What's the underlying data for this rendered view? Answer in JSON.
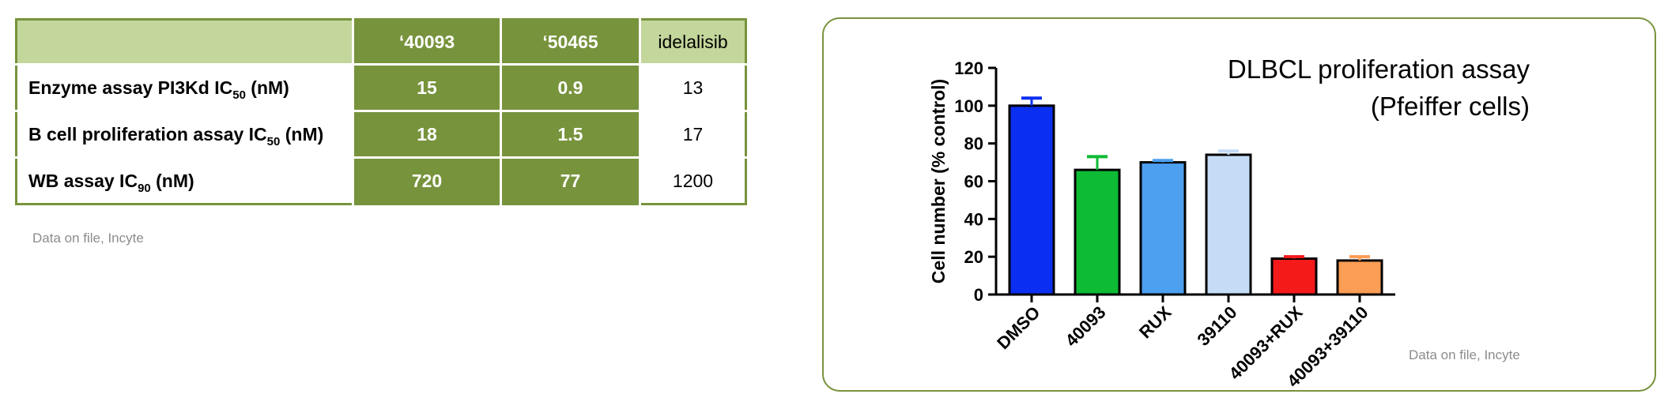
{
  "table": {
    "columns": [
      "‘40093",
      "‘50465",
      "idelalisib"
    ],
    "rows": [
      {
        "label": "Enzyme assay PI3Kd IC",
        "sub": "50",
        "suffix": " (nM)",
        "values": [
          "15",
          "0.9",
          "13"
        ]
      },
      {
        "label": "B cell proliferation assay IC",
        "sub": "50",
        "suffix": " (nM)",
        "values": [
          "18",
          "1.5",
          "17"
        ]
      },
      {
        "label": "WB assay IC",
        "sub": "90",
        "suffix": " (nM)",
        "values": [
          "720",
          "77",
          "1200"
        ]
      }
    ],
    "source": "Data on file, Incyte"
  },
  "chart_data": {
    "type": "bar",
    "title": [
      "DLBCL proliferation assay",
      "(Pfeiffer cells)"
    ],
    "categories": [
      "DMSO",
      "40093",
      "RUX",
      "39110",
      "40093+RUX",
      "40093+39110"
    ],
    "values": [
      100,
      66,
      70,
      74,
      19,
      18
    ],
    "errors": [
      4,
      7,
      1,
      2,
      1,
      2
    ],
    "colors": [
      "#0a2ff0",
      "#0dbb35",
      "#4d9fef",
      "#c5dcf6",
      "#f51a1a",
      "#fb9d55"
    ],
    "ylabel": "Cell number (% control)",
    "xlabel": "",
    "ylim": [
      0,
      120
    ],
    "yticks": [
      0,
      20,
      40,
      60,
      80,
      100,
      120
    ],
    "grid": false,
    "source": "Data on file, Incyte"
  }
}
